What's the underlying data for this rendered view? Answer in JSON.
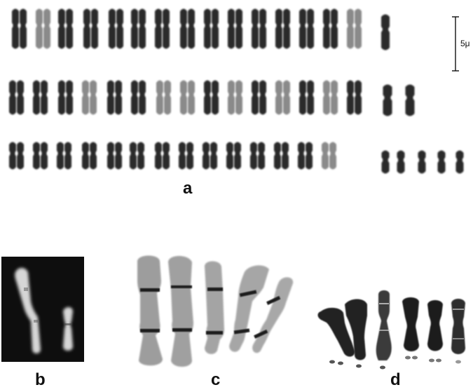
{
  "figure": {
    "panels": [
      {
        "label": "a"
      },
      {
        "label": "b"
      },
      {
        "label": "c"
      },
      {
        "label": "d"
      }
    ],
    "scale_bar": {
      "label": "5μ"
    }
  },
  "colors": {
    "background": "#ffffff",
    "chromosome_dark": "#2a2a2a",
    "chromosome_light": "#8a8a8a",
    "panel_b_background": "#0e0e0e",
    "panel_b_chromosome": "#d8d8d8",
    "band": "#1a1a1a"
  }
}
